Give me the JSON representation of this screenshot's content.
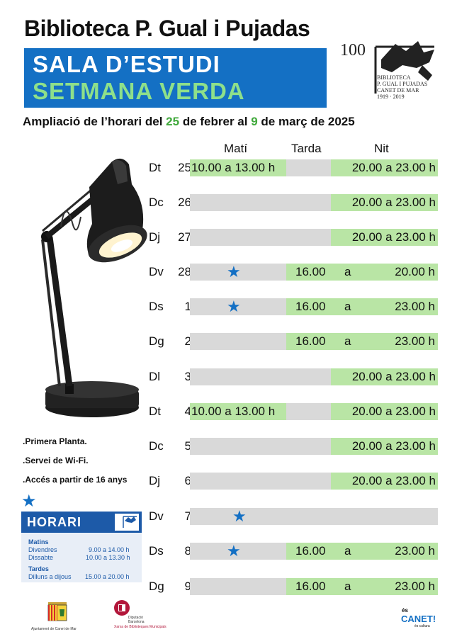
{
  "header": {
    "title": "Biblioteca P. Gual i Pujadas",
    "banner_line1": "SALA D’ESTUDI",
    "banner_line2": "SETMANA VERDA",
    "logo_lines": [
      "BIBLIOTECA",
      "P. GUAL I PUJADAS",
      "CANET DE MAR",
      "1919 · 2019"
    ],
    "logo_number": "100",
    "colors": {
      "banner": "#1470c4",
      "banner_green_text": "#8ee08a",
      "highlight_green": "#3fa83a",
      "cell_green": "#b9e5a5",
      "cell_grey": "#d9d9d9"
    }
  },
  "subtitle": {
    "part1": "Ampliació de l’horari del ",
    "day1": "25",
    "part2": " de febrer al ",
    "day2": "9",
    "part3": " de març de 2025"
  },
  "columns": {
    "mati": "Matí",
    "tarda": "Tarda",
    "nit": "Nit"
  },
  "schedule": [
    {
      "day": "Dt",
      "num": "25",
      "mati": "10.00 a 13.00 h",
      "nit": "20.00 a 23.00 h"
    },
    {
      "day": "Dc",
      "num": "26",
      "nit": "20.00 a 23.00 h"
    },
    {
      "day": "Dj",
      "num": "27",
      "nit": "20.00 a 23.00 h"
    },
    {
      "day": "Dv",
      "num": "28",
      "star": true,
      "tn_from": "16.00",
      "tn_a": "a",
      "tn_to": "20.00 h"
    },
    {
      "day": "Ds",
      "num": "1",
      "star": true,
      "tn_from": "16.00",
      "tn_a": "a",
      "tn_to": "23.00 h"
    },
    {
      "day": "Dg",
      "num": "2",
      "tn_from": "16.00",
      "tn_a": "a",
      "tn_to": "23.00 h"
    },
    {
      "day": "Dl",
      "num": "3",
      "nit": "20.00 a 23.00 h"
    },
    {
      "day": "Dt",
      "num": "4",
      "mati": "10.00 a 13.00 h",
      "nit": "20.00 a 23.00 h"
    },
    {
      "day": "Dc",
      "num": "5",
      "nit": "20.00 a 23.00 h"
    },
    {
      "day": "Dj",
      "num": "6",
      "nit": "20.00 a 23.00 h"
    },
    {
      "day": "Dv",
      "num": "7",
      "star": true
    },
    {
      "day": "Ds",
      "num": "8",
      "star": true,
      "tn_from": "16.00",
      "tn_a": "a",
      "tn_to": "23.00 h"
    },
    {
      "day": "Dg",
      "num": "9",
      "tn_from": "16.00",
      "tn_a": "a",
      "tn_to": "23.00 h"
    }
  ],
  "info": [
    ".Primera Planta.",
    ".Servei de Wi-Fi.",
    ".Accés a partir de 16 anys"
  ],
  "horari": {
    "title": "HORARI",
    "matins_label": "Matins",
    "matins": [
      {
        "day": "Divendres",
        "hours": "9.00 a 14.00 h"
      },
      {
        "day": "Dissabte",
        "hours": "10.00 a 13.30 h"
      }
    ],
    "tardes_label": "Tardes",
    "tardes": [
      {
        "day": "Dilluns a dijous",
        "hours": "15.00 a 20.00 h"
      }
    ]
  },
  "footer": {
    "ajuntament": "Ajuntament de Canet de Mar",
    "diputacio_1": "Diputació",
    "diputacio_2": "Barcelona",
    "diputacio_3": "Xarxa de Biblioteques Municipals",
    "canet_es": "és",
    "canet_main": "CANET!",
    "canet_sub": "és cultura"
  }
}
